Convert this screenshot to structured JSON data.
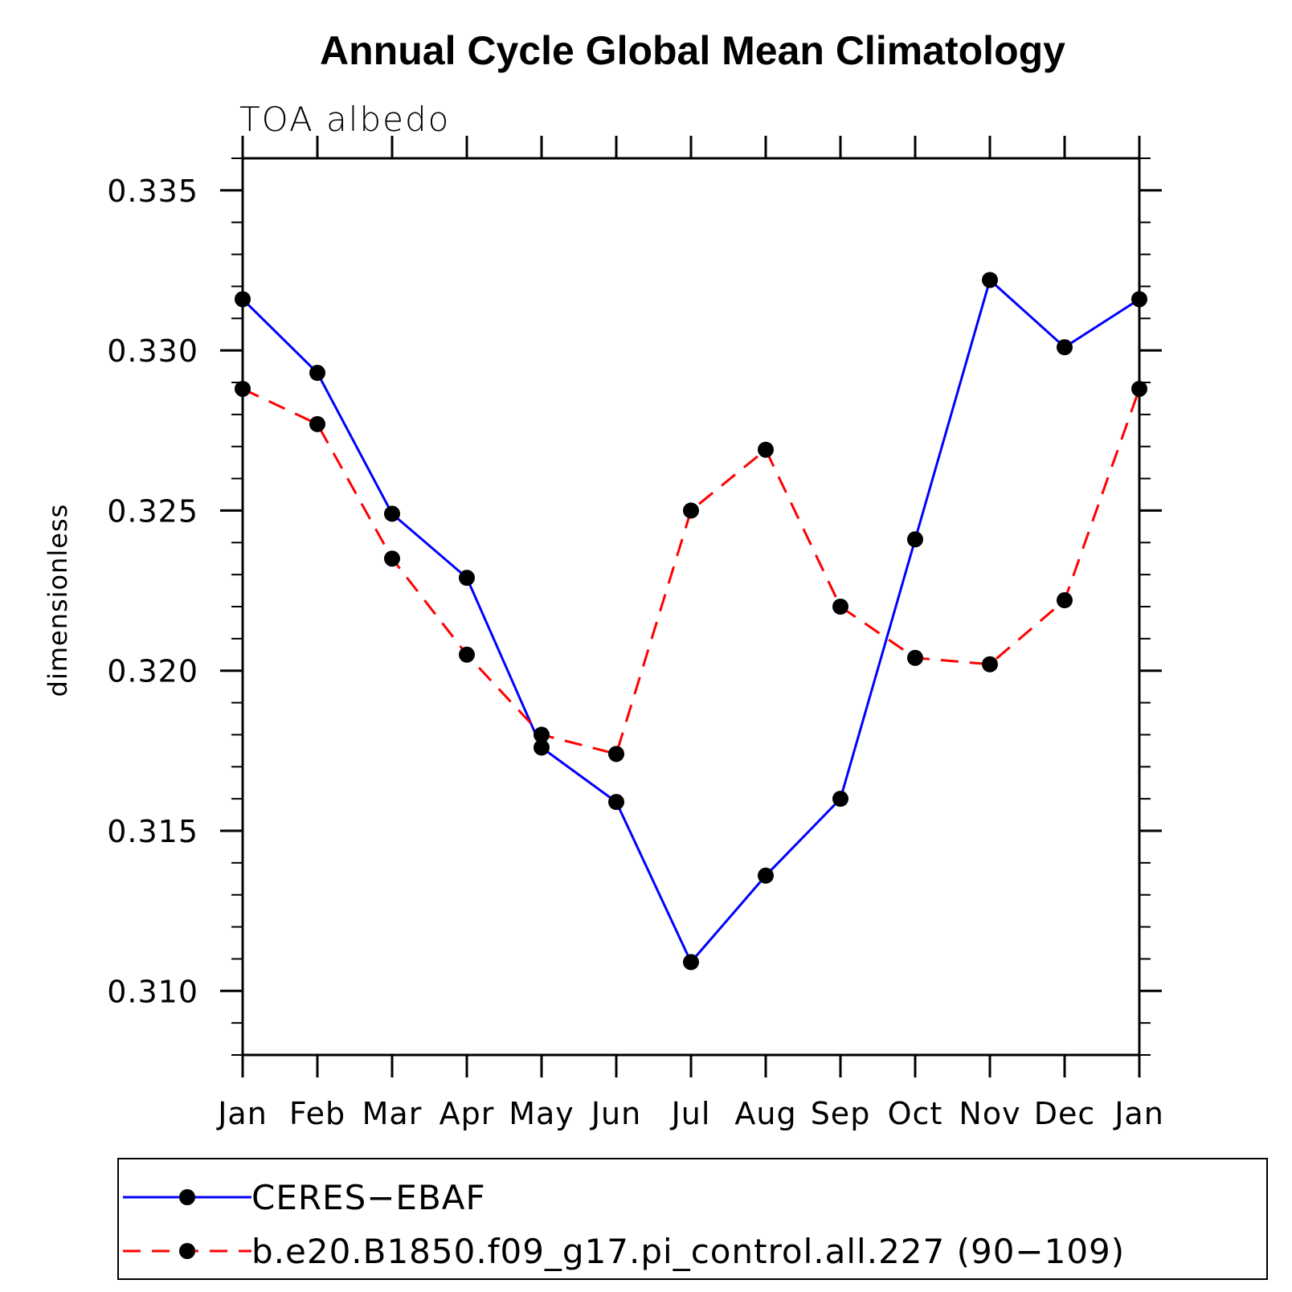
{
  "chart_data": {
    "type": "line",
    "title": "Annual Cycle Global Mean Climatology",
    "subtitle": "TOA albedo",
    "ylabel": "dimensionless",
    "xlabel": "",
    "categories": [
      "Jan",
      "Feb",
      "Mar",
      "Apr",
      "May",
      "Jun",
      "Jul",
      "Aug",
      "Sep",
      "Oct",
      "Nov",
      "Dec",
      "Jan"
    ],
    "ylim": [
      0.308,
      0.336
    ],
    "yticks": [
      "0.310",
      "0.315",
      "0.320",
      "0.325",
      "0.330",
      "0.335"
    ],
    "ytick_values": [
      0.31,
      0.315,
      0.32,
      0.325,
      0.33,
      0.335
    ],
    "grid": false,
    "legend_position": "bottom",
    "series": [
      {
        "name": "CERES−EBAF",
        "color": "#0000ff",
        "dash": "solid",
        "marker": "filled-circle",
        "values": [
          0.3316,
          0.3293,
          0.3249,
          0.3229,
          0.3176,
          0.3159,
          0.3109,
          0.3136,
          0.316,
          0.3241,
          0.3322,
          0.3301,
          0.3316
        ]
      },
      {
        "name": "b.e20.B1850.f09_g17.pi_control.all.227 (90−109)",
        "color": "#ff0000",
        "dash": "dashed",
        "marker": "filled-circle",
        "values": [
          0.3288,
          0.3277,
          0.3235,
          0.3205,
          0.318,
          0.3174,
          0.325,
          0.3269,
          0.322,
          0.3204,
          0.3202,
          0.3222,
          0.3288
        ]
      }
    ]
  }
}
